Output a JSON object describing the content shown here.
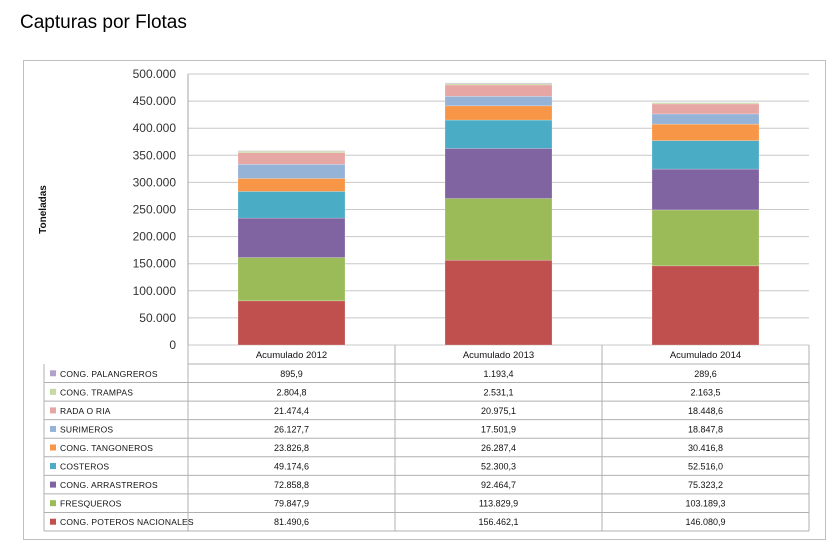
{
  "page": {
    "title": "Capturas por Flotas"
  },
  "chart_data": {
    "type": "bar",
    "stacked": true,
    "ylabel": "Toneladas",
    "ylim": [
      0,
      500000
    ],
    "yticks": [
      0,
      50000,
      100000,
      150000,
      200000,
      250000,
      300000,
      350000,
      400000,
      450000,
      500000
    ],
    "ytick_labels": [
      "0",
      "50.000",
      "100.000",
      "150.000",
      "200.000",
      "250.000",
      "300.000",
      "350.000",
      "400.000",
      "450.000",
      "500.000"
    ],
    "grid": true,
    "legend": "data-table-below",
    "categories": [
      "Acumulado 2012",
      "Acumulado 2013",
      "Acumulado 2014"
    ],
    "series": [
      {
        "name": "CONG. POTEROS NACIONALES",
        "color": "#c0504d",
        "values": [
          81490.6,
          156462.1,
          146080.9
        ],
        "labels": [
          "81.490,6",
          "156.462,1",
          "146.080,9"
        ]
      },
      {
        "name": "FRESQUEROS",
        "color": "#9bbb59",
        "values": [
          79847.9,
          113829.9,
          103189.3
        ],
        "labels": [
          "79.847,9",
          "113.829,9",
          "103.189,3"
        ]
      },
      {
        "name": "CONG. ARRASTREROS",
        "color": "#8064a2",
        "values": [
          72858.8,
          92464.7,
          75323.2
        ],
        "labels": [
          "72.858,8",
          "92.464,7",
          "75.323,2"
        ]
      },
      {
        "name": "COSTEROS",
        "color": "#4bacc6",
        "values": [
          49174.6,
          52300.3,
          52516.0
        ],
        "labels": [
          "49.174,6",
          "52.300,3",
          "52.516,0"
        ]
      },
      {
        "name": "CONG. TANGONEROS",
        "color": "#f79646",
        "values": [
          23826.8,
          26287.4,
          30416.8
        ],
        "labels": [
          "23.826,8",
          "26.287,4",
          "30.416,8"
        ]
      },
      {
        "name": "SURIMEROS",
        "color": "#95b3d7",
        "values": [
          26127.7,
          17501.9,
          18847.8
        ],
        "labels": [
          "26.127,7",
          "17.501,9",
          "18.847,8"
        ]
      },
      {
        "name": "RADA O RIA",
        "color": "#e6a6a4",
        "values": [
          21474.4,
          20975.1,
          18448.6
        ],
        "labels": [
          "21.474,4",
          "20.975,1",
          "18.448,6"
        ]
      },
      {
        "name": "CONG. TRAMPAS",
        "color": "#c6d9a0",
        "values": [
          2804.8,
          2531.1,
          2163.5
        ],
        "labels": [
          "2.804,8",
          "2.531,1",
          "2.163,5"
        ]
      },
      {
        "name": "CONG. PALANGREROS",
        "color": "#b3a2c7",
        "values": [
          895.9,
          1193.4,
          289.6
        ],
        "labels": [
          "895,9",
          "1.193,4",
          "289,6"
        ]
      }
    ]
  }
}
